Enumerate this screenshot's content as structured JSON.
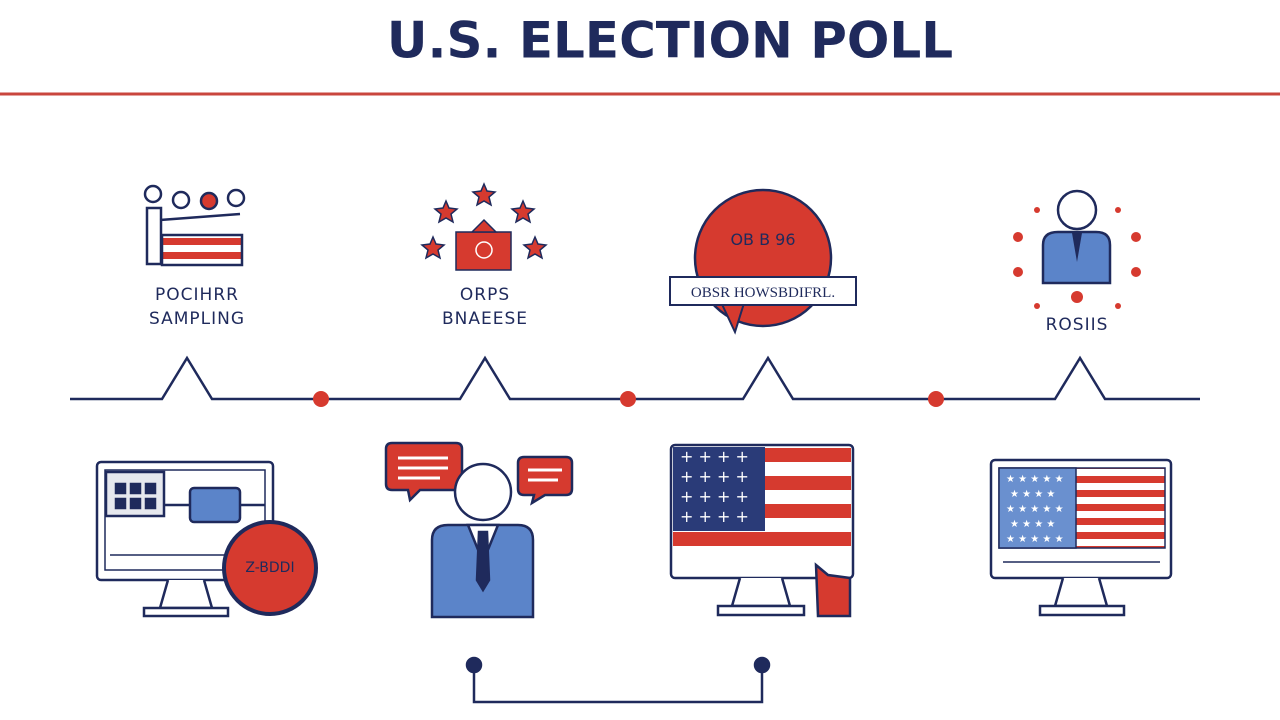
{
  "header": {
    "title": "U.S. ELECTION POLL"
  },
  "steps": [
    {
      "lines": [
        "POCIHRR",
        "SAMPLING"
      ]
    },
    {
      "lines": [
        "ORPS",
        "BNAEESE"
      ]
    },
    {
      "bubble_text": "OB B 96",
      "banner_text": "OBSR HOWSBDIFRL."
    },
    {
      "lines": [
        "ROSIIS"
      ]
    }
  ],
  "monitor_badge": "Z-BDDI"
}
